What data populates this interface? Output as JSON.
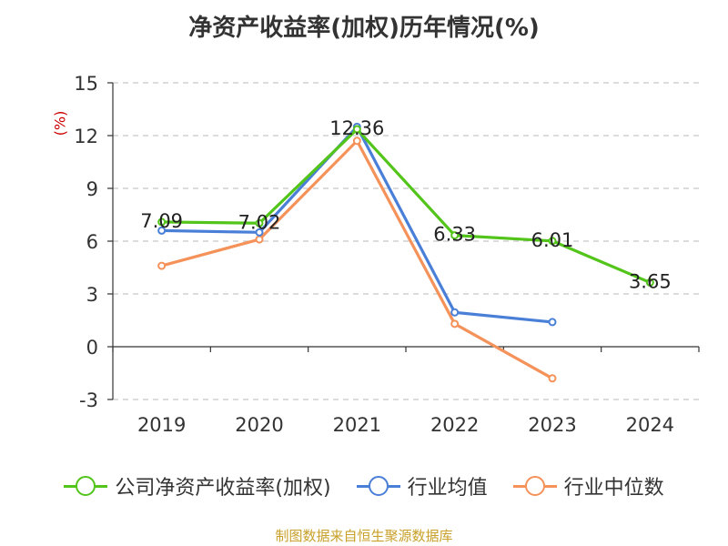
{
  "chart_data": {
    "type": "line",
    "title": "净资产收益率(加权)历年情况(%)",
    "ylabel": "(%)",
    "xlabel": "",
    "categories": [
      "2019",
      "2020",
      "2021",
      "2022",
      "2023",
      "2024"
    ],
    "ylim": [
      -3,
      15
    ],
    "yticks": [
      -3,
      0,
      3,
      6,
      9,
      12,
      15
    ],
    "grid": true,
    "legend_position": "bottom",
    "series": [
      {
        "name": "公司净资产收益率(加权)",
        "color": "#52c41a",
        "values": [
          7.09,
          7.02,
          12.36,
          6.33,
          6.01,
          3.65
        ],
        "labels": [
          "7.09",
          "7.02",
          "12.36",
          "6.33",
          "6.01",
          "3.65"
        ]
      },
      {
        "name": "行业均值",
        "color": "#4a7fd8",
        "values": [
          6.6,
          6.5,
          12.5,
          1.95,
          1.4,
          null
        ]
      },
      {
        "name": "行业中位数",
        "color": "#f4925a",
        "values": [
          4.6,
          6.1,
          11.7,
          1.3,
          -1.8,
          null
        ]
      }
    ]
  },
  "footer": {
    "source": "制图数据来自恒生聚源数据库"
  }
}
